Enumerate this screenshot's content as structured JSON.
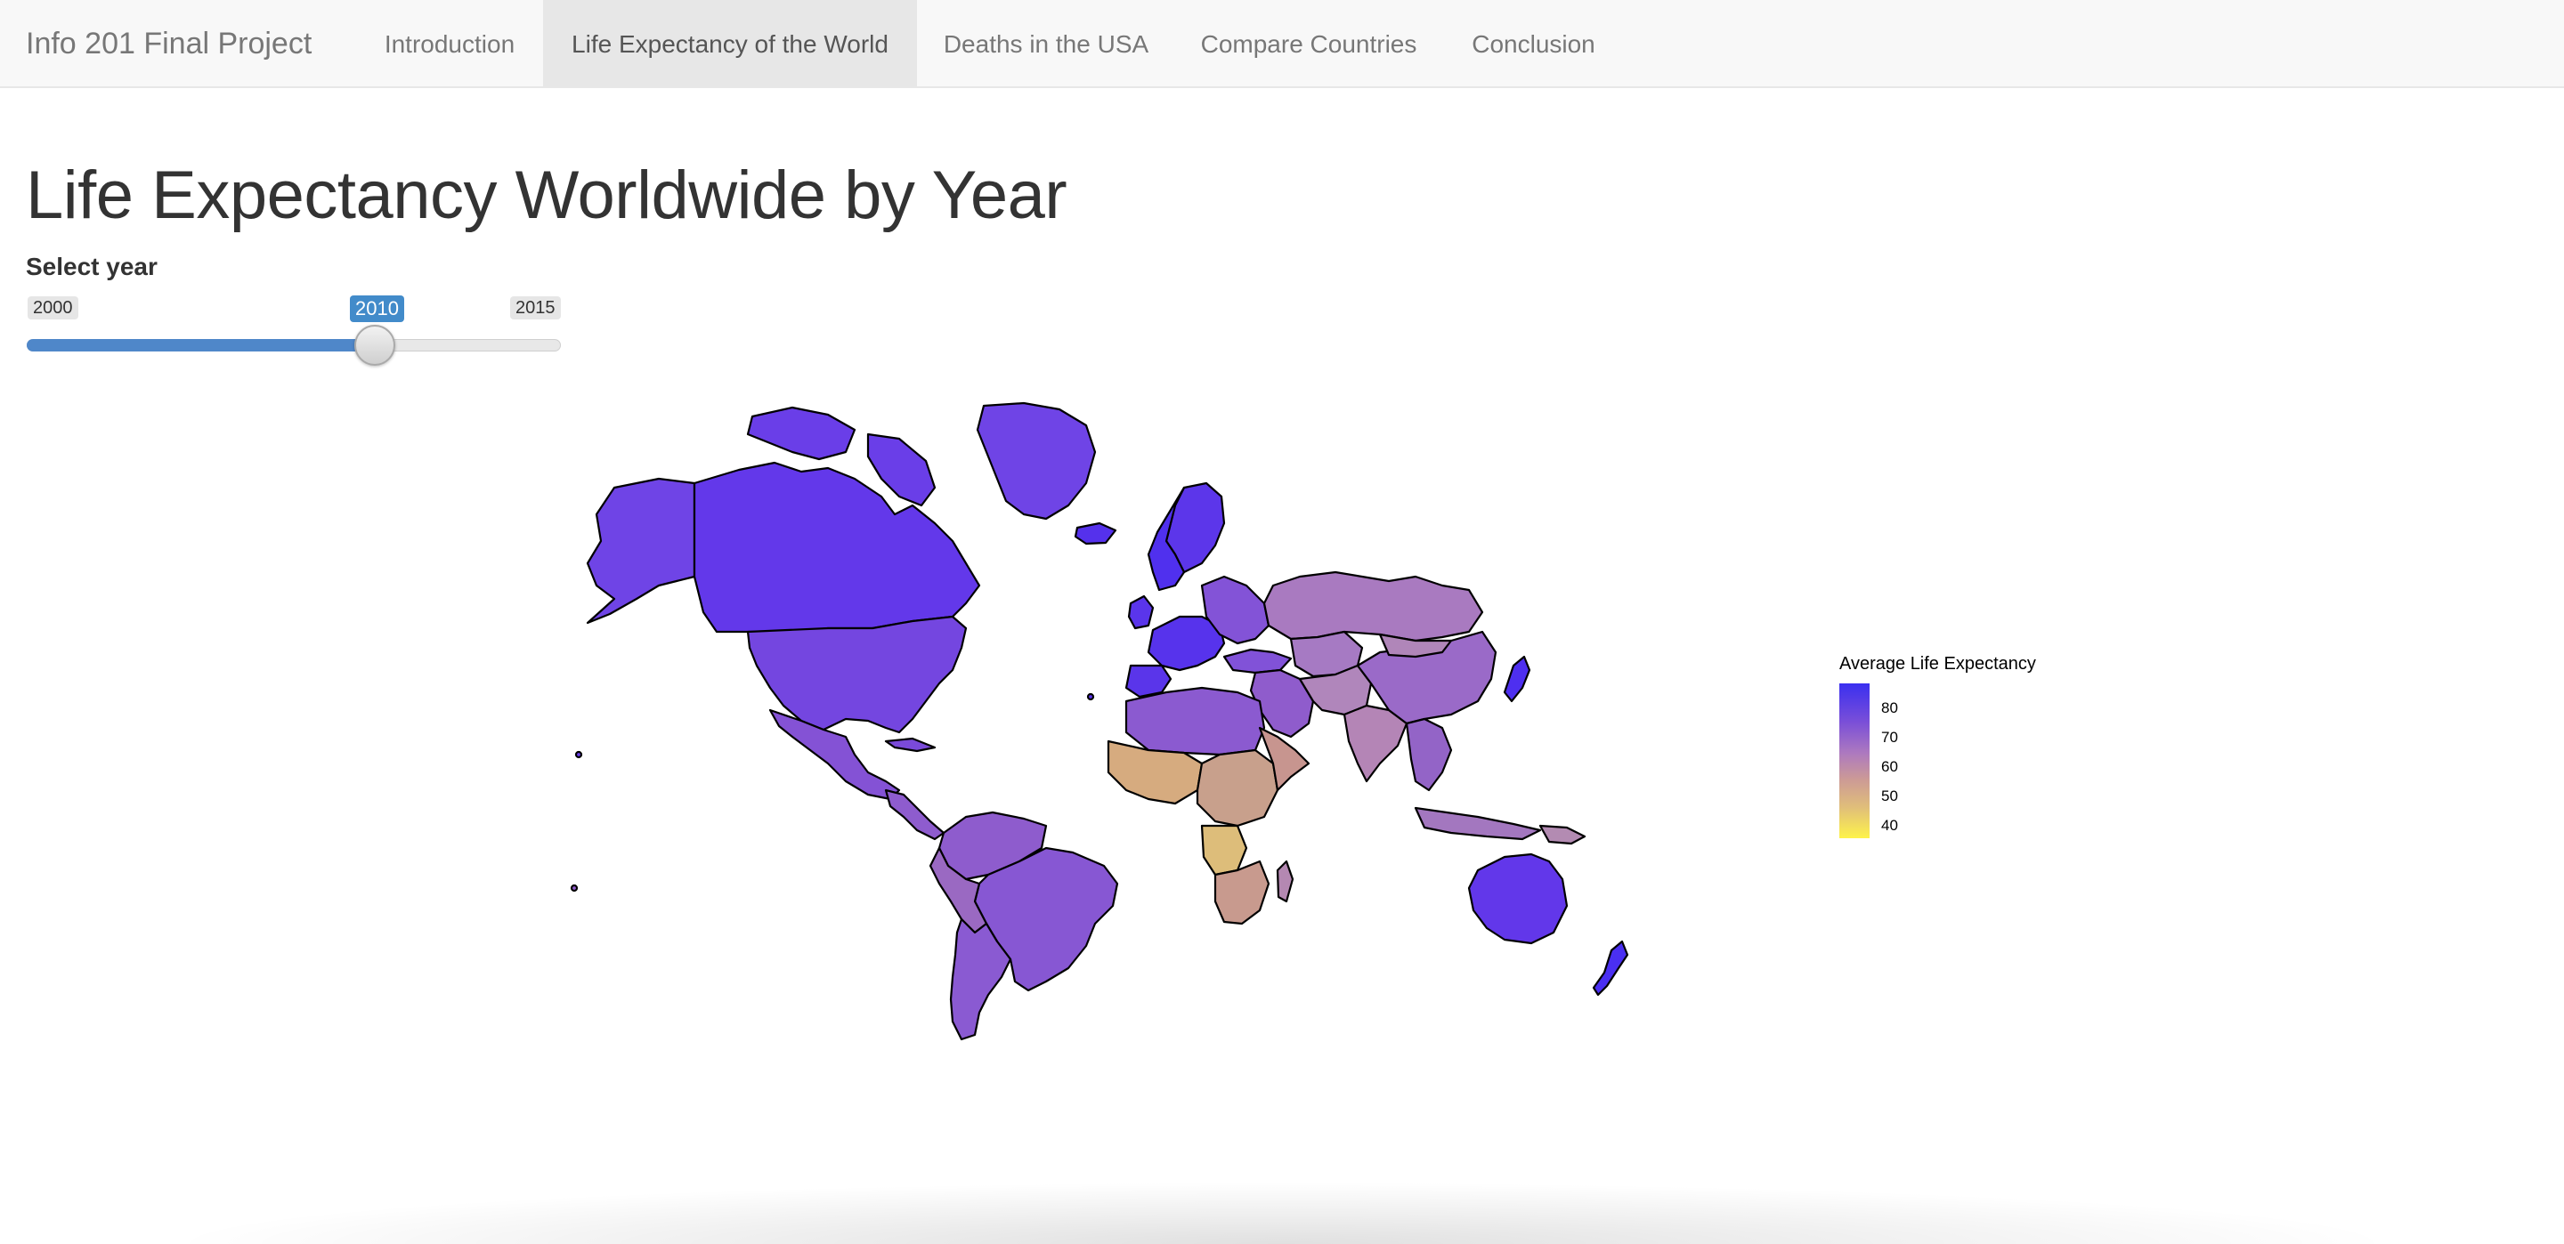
{
  "app": {
    "brand": "Info 201 Final Project"
  },
  "nav": {
    "items": [
      {
        "label": "Introduction",
        "active": false
      },
      {
        "label": "Life Expectancy of the World",
        "active": true
      },
      {
        "label": "Deaths in the USA",
        "active": false
      },
      {
        "label": "Compare Countries",
        "active": false
      },
      {
        "label": "Conclusion",
        "active": false
      }
    ]
  },
  "page": {
    "title": "Life Expectancy Worldwide by Year"
  },
  "year_slider": {
    "label": "Select year",
    "min": "2000",
    "max": "2015",
    "value": "2010"
  },
  "map": {
    "legend_title": "Average Life Expectancy",
    "legend_ticks": [
      "80",
      "70",
      "60",
      "50",
      "40"
    ],
    "color_scale": {
      "high": "#3a2ff0",
      "mid": "#ad79bf",
      "low": "#fef34a"
    }
  }
}
